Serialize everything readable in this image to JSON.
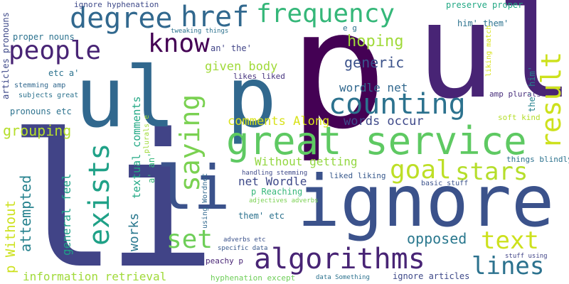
{
  "words": [
    {
      "text": "p",
      "color": "#440154"
    },
    {
      "text": "ul",
      "color": "#482475"
    },
    {
      "text": "li",
      "color": "#414487"
    },
    {
      "text": "ignore",
      "color": "#3b528b"
    },
    {
      "text": "ul p",
      "color": "#31688e"
    },
    {
      "text": "great service",
      "color": "#5ec962"
    },
    {
      "text": "algorithms",
      "color": "#482475"
    },
    {
      "text": "counting",
      "color": "#2c728e"
    },
    {
      "text": "degree",
      "color": "#31688e"
    },
    {
      "text": "href",
      "color": "#31688e"
    },
    {
      "text": "frequency",
      "color": "#35b779"
    },
    {
      "text": "people",
      "color": "#482475"
    },
    {
      "text": "know",
      "color": "#440154"
    },
    {
      "text": "saying",
      "color": "#7ad151"
    },
    {
      "text": "exists",
      "color": "#1fa187"
    },
    {
      "text": "li",
      "color": "#3b528b"
    },
    {
      "text": "goal",
      "color": "#bddf26"
    },
    {
      "text": "stars",
      "color": "#b5de2b"
    },
    {
      "text": "text",
      "color": "#cde11d"
    },
    {
      "text": "lines",
      "color": "#2c728e"
    },
    {
      "text": "set",
      "color": "#6ece58"
    },
    {
      "text": "result",
      "color": "#cde11d"
    },
    {
      "text": "hoping",
      "color": "#a0da39"
    },
    {
      "text": "generic",
      "color": "#3b528b"
    },
    {
      "text": "opposed",
      "color": "#2a788e"
    },
    {
      "text": "grouping",
      "color": "#b5de2b"
    },
    {
      "text": "comments Along",
      "color": "#d8e219"
    },
    {
      "text": "words occur",
      "color": "#3e4989"
    },
    {
      "text": "given body",
      "color": "#a0da39"
    },
    {
      "text": "wordle net",
      "color": "#31688e"
    },
    {
      "text": "Without getting",
      "color": "#93d741"
    },
    {
      "text": "net Wordle",
      "color": "#3e4989"
    },
    {
      "text": "information retrieval",
      "color": "#a0da39"
    },
    {
      "text": "attempted",
      "color": "#26828e"
    },
    {
      "text": "works",
      "color": "#2a788e"
    },
    {
      "text": "general feel",
      "color": "#1fa187"
    },
    {
      "text": "p Without",
      "color": "#cde11d"
    },
    {
      "text": "textual comments",
      "color": "#22a884"
    },
    {
      "text": "p Reaching",
      "color": "#35b779"
    },
    {
      "text": "ignore hyphenation",
      "color": "#3e4989"
    },
    {
      "text": "preserve proper",
      "color": "#22a884"
    },
    {
      "text": "proper nouns",
      "color": "#2c728e"
    },
    {
      "text": "articles pronouns",
      "color": "#3e4989"
    },
    {
      "text": "stemming amp",
      "color": "#31688e"
    },
    {
      "text": "subjects great",
      "color": "#2c728e"
    },
    {
      "text": "pronouns etc",
      "color": "#2c728e"
    },
    {
      "text": "etc a'",
      "color": "#2c728e"
    },
    {
      "text": "an' the'",
      "color": "#414487"
    },
    {
      "text": "likes liked",
      "color": "#46337e"
    },
    {
      "text": "him' them'",
      "color": "#2c728e"
    },
    {
      "text": "e g",
      "color": "#2c728e"
    },
    {
      "text": "tweaking things",
      "color": "#2c728e"
    },
    {
      "text": "liking match",
      "color": "#d8e219"
    },
    {
      "text": "amp plurals",
      "color": "#472d7b"
    },
    {
      "text": "soft kind",
      "color": "#b5de2b"
    },
    {
      "text": "things blindly",
      "color": "#2c728e"
    },
    {
      "text": "the' him'",
      "color": "#26828e"
    },
    {
      "text": "plurals e",
      "color": "#a0da39"
    },
    {
      "text": "a' an'",
      "color": "#35b779"
    },
    {
      "text": "using Wordnet",
      "color": "#31688e"
    },
    {
      "text": "handling stemming",
      "color": "#3e4989"
    },
    {
      "text": "adjectives adverbs",
      "color": "#7ad151"
    },
    {
      "text": "liked liking",
      "color": "#38598c"
    },
    {
      "text": "them' etc",
      "color": "#2c728e"
    },
    {
      "text": "adverbs etc",
      "color": "#3b528b"
    },
    {
      "text": "specific data",
      "color": "#38598c"
    },
    {
      "text": "basic stuff",
      "color": "#3b528b"
    },
    {
      "text": "peachy p",
      "color": "#482475"
    },
    {
      "text": "hyphenation except",
      "color": "#6ece58"
    },
    {
      "text": "data Something",
      "color": "#2c728e"
    },
    {
      "text": "ignore articles",
      "color": "#3e4989"
    },
    {
      "text": "stuff using",
      "color": "#414487"
    }
  ]
}
